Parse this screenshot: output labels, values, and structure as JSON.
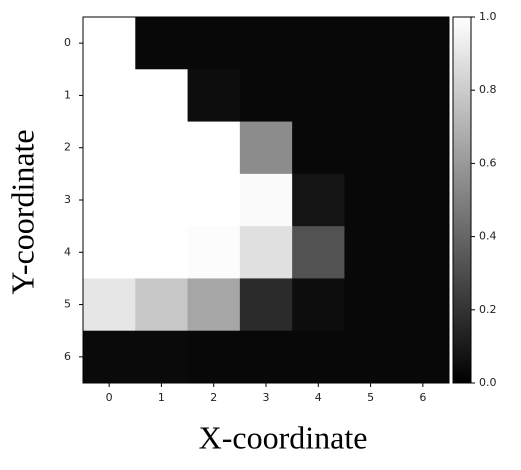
{
  "chart_data": {
    "type": "heatmap",
    "xlabel": "X-coordinate",
    "ylabel": "Y-coordinate",
    "x": [
      0,
      1,
      2,
      3,
      4,
      5,
      6
    ],
    "y": [
      0,
      1,
      2,
      3,
      4,
      5,
      6
    ],
    "xlim": [
      -0.5,
      6.5
    ],
    "ylim": [
      6.5,
      -0.5
    ],
    "colormap": "gray",
    "values": [
      [
        1,
        0.03,
        0.03,
        0.03,
        0.03,
        0.03,
        0.03
      ],
      [
        1,
        1,
        0.05,
        0.03,
        0.03,
        0.03,
        0.03
      ],
      [
        1,
        1,
        1,
        0.55,
        0.03,
        0.03,
        0.03
      ],
      [
        1,
        1,
        1,
        0.98,
        0.08,
        0.03,
        0.03
      ],
      [
        1,
        1,
        0.99,
        0.88,
        0.32,
        0.03,
        0.03
      ],
      [
        0.9,
        0.78,
        0.65,
        0.17,
        0.05,
        0.03,
        0.03
      ],
      [
        0.04,
        0.04,
        0.03,
        0.03,
        0.03,
        0.03,
        0.03
      ]
    ],
    "zlim": [
      0,
      1
    ],
    "zticks": [
      {
        "value": 0,
        "label": "0.0"
      },
      0.2,
      0.4,
      0.6,
      0.8,
      {
        "value": 1,
        "label": "1.0"
      }
    ]
  }
}
